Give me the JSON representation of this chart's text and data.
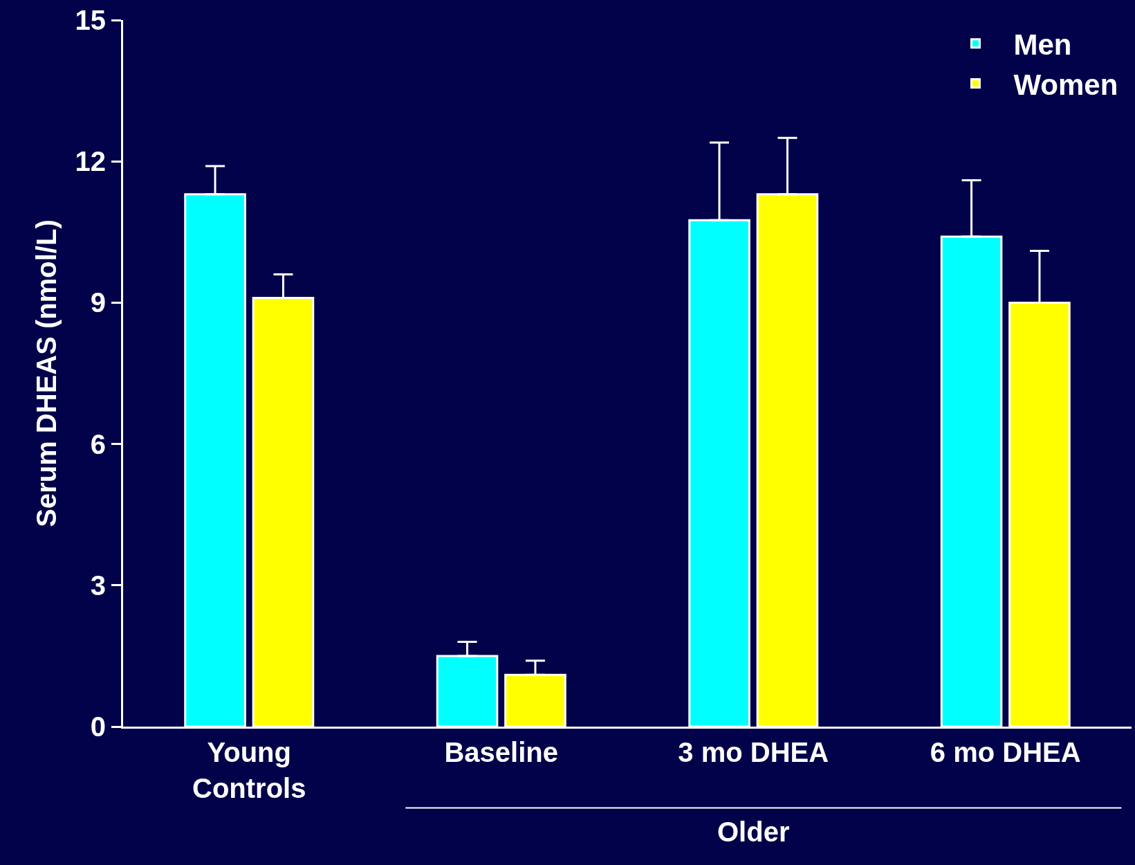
{
  "chart_data": {
    "type": "bar",
    "ylabel": "Serum DHEAS (nmol/L)",
    "categories": [
      "Young\nControls",
      "Baseline",
      "3 mo DHEA",
      "6 mo DHEA"
    ],
    "series": [
      {
        "name": "Men",
        "color": "#00ffff",
        "values": [
          11.3,
          1.5,
          10.75,
          10.4
        ],
        "errors": [
          [
            11.3,
            11.9
          ],
          [
            1.5,
            1.8
          ],
          [
            10.75,
            12.4
          ],
          [
            10.4,
            11.6
          ]
        ]
      },
      {
        "name": "Women",
        "color": "#ffff00",
        "values": [
          9.1,
          1.1,
          11.3,
          9.0
        ],
        "errors": [
          [
            9.1,
            9.6
          ],
          [
            1.1,
            1.4
          ],
          [
            11.3,
            12.5
          ],
          [
            9.0,
            10.1
          ]
        ]
      }
    ],
    "ylim": [
      0,
      15
    ],
    "yticks": [
      0,
      3,
      6,
      9,
      12,
      15
    ],
    "grid": false,
    "legend": "top right",
    "annotations": [
      "Older"
    ]
  }
}
